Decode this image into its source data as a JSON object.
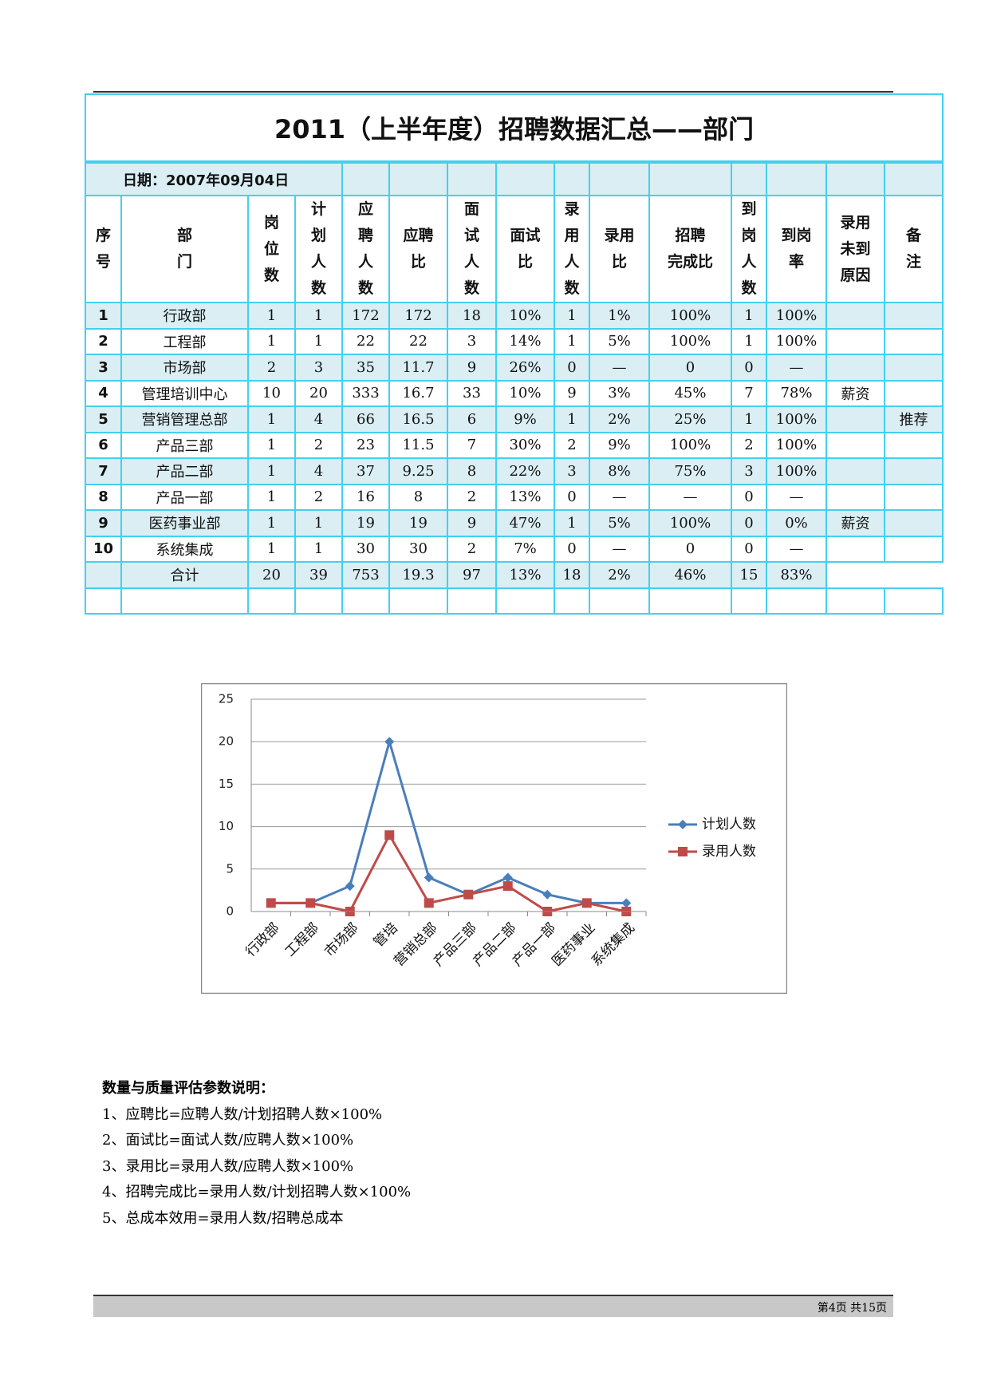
{
  "table": {
    "title": "2011（上半年度）招聘数据汇总——部门",
    "date": "日期：2007年09月04日",
    "header": [
      [
        "序",
        "号"
      ],
      [
        "部",
        "门"
      ],
      [
        "岗",
        "位",
        "数"
      ],
      [
        "计",
        "划",
        "人",
        "数"
      ],
      [
        "应",
        "聘",
        "人",
        "数"
      ],
      [
        "应聘",
        "比"
      ],
      [
        "面",
        "试",
        "人",
        "数"
      ],
      [
        "面试",
        "比"
      ],
      [
        "录",
        "用",
        "人",
        "数"
      ],
      [
        "录用",
        "比"
      ],
      [
        "招聘",
        "完成比"
      ],
      [
        "到",
        "岗",
        "人",
        "数"
      ],
      [
        "到岗",
        "率"
      ],
      [
        "录用",
        "未到",
        "原因"
      ],
      [
        "备",
        "注"
      ]
    ],
    "rows": [
      [
        "1",
        "行政部",
        "1",
        "1",
        "172",
        "172",
        "18",
        "10%",
        "1",
        "1%",
        "100%",
        "1",
        "100%",
        null,
        null
      ],
      [
        "2",
        "工程部",
        "1",
        "1",
        "22",
        "22",
        "3",
        "14%",
        "1",
        "5%",
        "100%",
        "1",
        "100%",
        null,
        null
      ],
      [
        "3",
        "市场部",
        "2",
        "3",
        "35",
        "11.7",
        "9",
        "26%",
        "0",
        "—",
        "0",
        "0",
        "—",
        null,
        null
      ],
      [
        "4",
        "管理培训中心",
        "10",
        "20",
        "333",
        "16.7",
        "33",
        "10%",
        "9",
        "3%",
        "45%",
        "7",
        "78%",
        "薪资",
        null
      ],
      [
        "5",
        "营销管理总部",
        "1",
        "4",
        "66",
        "16.5",
        "6",
        "9%",
        "1",
        "2%",
        "25%",
        "1",
        "100%",
        null,
        "推荐"
      ],
      [
        "6",
        "产品三部",
        "1",
        "2",
        "23",
        "11.5",
        "7",
        "30%",
        "2",
        "9%",
        "100%",
        "2",
        "100%",
        null,
        null
      ],
      [
        "7",
        "产品二部",
        "1",
        "4",
        "37",
        "9.25",
        "8",
        "22%",
        "3",
        "8%",
        "75%",
        "3",
        "100%",
        null,
        null
      ],
      [
        "8",
        "产品一部",
        "1",
        "2",
        "16",
        "8",
        "2",
        "13%",
        "0",
        "—",
        "—",
        "0",
        "—",
        null,
        null
      ],
      [
        "9",
        "医药事业部",
        "1",
        "1",
        "19",
        "19",
        "9",
        "47%",
        "1",
        "5%",
        "100%",
        "0",
        "0%",
        "薪资",
        null
      ],
      [
        "10",
        "系统集成",
        "1",
        "1",
        "30",
        "30",
        "2",
        "7%",
        "0",
        "—",
        "0",
        "0",
        "—",
        null,
        null
      ]
    ],
    "total": {
      "label": "合计",
      "cells": [
        "20",
        "39",
        "753",
        "19.3",
        "97",
        "13%",
        "18",
        "2%",
        "46%",
        "15",
        "83%"
      ]
    }
  },
  "chart_data": {
    "type": "line",
    "categories": [
      "行政部",
      "工程部",
      "市场部",
      "管培",
      "营销总部",
      "产品三部",
      "产品二部",
      "产品一部",
      "医药事业",
      "系统集成"
    ],
    "series": [
      {
        "name": "计划人数",
        "color": "#4a7ebb",
        "marker": "diamond",
        "values": [
          1,
          1,
          3,
          20,
          4,
          2,
          4,
          2,
          1,
          1
        ]
      },
      {
        "name": "录用人数",
        "color": "#be4b48",
        "marker": "square",
        "values": [
          1,
          1,
          0,
          9,
          1,
          2,
          3,
          0,
          1,
          0
        ]
      }
    ],
    "ylim": [
      0,
      25
    ],
    "yticks": [
      0,
      5,
      10,
      15,
      20,
      25
    ],
    "grid": true,
    "legend": "right"
  },
  "notes": {
    "title": "数量与质量评估参数说明：",
    "items": [
      "1、应聘比=应聘人数/计划招聘人数×100%",
      "2、面试比=面试人数/应聘人数×100%",
      "3、录用比=录用人数/应聘人数×100%",
      "4、招聘完成比=录用人数/计划招聘人数×100%",
      "5、总成本效用=录用人数/招聘总成本"
    ]
  },
  "footer": {
    "page": "第4页  共15页"
  }
}
